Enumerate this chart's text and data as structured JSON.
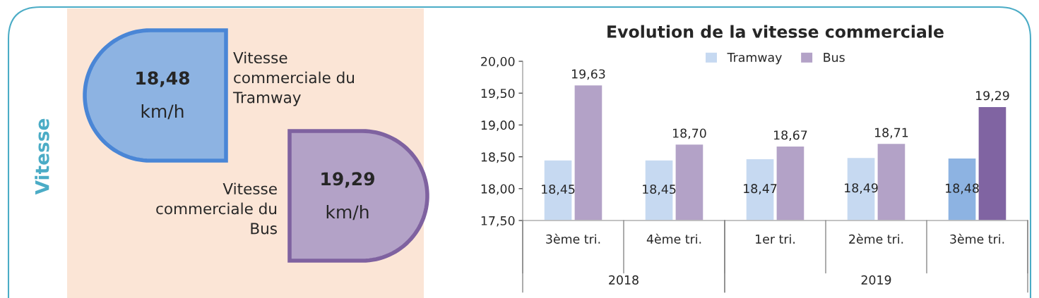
{
  "chart_data": [
    {
      "type": "other",
      "title": "Vitesse",
      "annotations": [
        "18,48",
        "km/h",
        "Vitesse\ncommerciale du\nTramway",
        "19,29",
        "km/h",
        "Vitesse\ncommerciale du\nBus"
      ]
    },
    {
      "type": "bar",
      "title": "Evolution de la vitesse commerciale",
      "categories": [
        "3ème tri.",
        "4ème tri.",
        "1er tri.",
        "2ème tri.",
        "3ème tri."
      ],
      "annotations": [
        "2018",
        "2019"
      ],
      "series": [
        {
          "name": "Tramway",
          "color": "#c6d9f1",
          "colors": [
            "#c6d9f1",
            "#c6d9f1",
            "#c6d9f1",
            "#c6d9f1",
            "#8db3e2"
          ],
          "values": [
            18.45,
            18.45,
            18.47,
            18.49,
            18.48
          ],
          "value_labels": [
            "18,45",
            "18,45",
            "18,47",
            "18,49",
            "18,48"
          ]
        },
        {
          "name": "Bus",
          "color": "#b3a2c7",
          "colors": [
            "#b3a2c7",
            "#b3a2c7",
            "#b3a2c7",
            "#b3a2c7",
            "#8064a2"
          ],
          "values": [
            19.63,
            18.7,
            18.67,
            18.71,
            19.29
          ],
          "value_labels": [
            "19,63",
            "18,70",
            "18,67",
            "18,71",
            "19,29"
          ]
        }
      ],
      "ylim": [
        17.5,
        20
      ],
      "yticks": [
        {
          "value": 17.5,
          "label": "17,50"
        },
        {
          "value": 18,
          "label": "18,00"
        },
        {
          "value": 18.5,
          "label": "18,50"
        },
        {
          "value": 19,
          "label": "19,00"
        },
        {
          "value": 19.5,
          "label": "19,50"
        },
        {
          "value": 20,
          "label": "20,00"
        }
      ],
      "grid": false,
      "legend": "top"
    }
  ]
}
